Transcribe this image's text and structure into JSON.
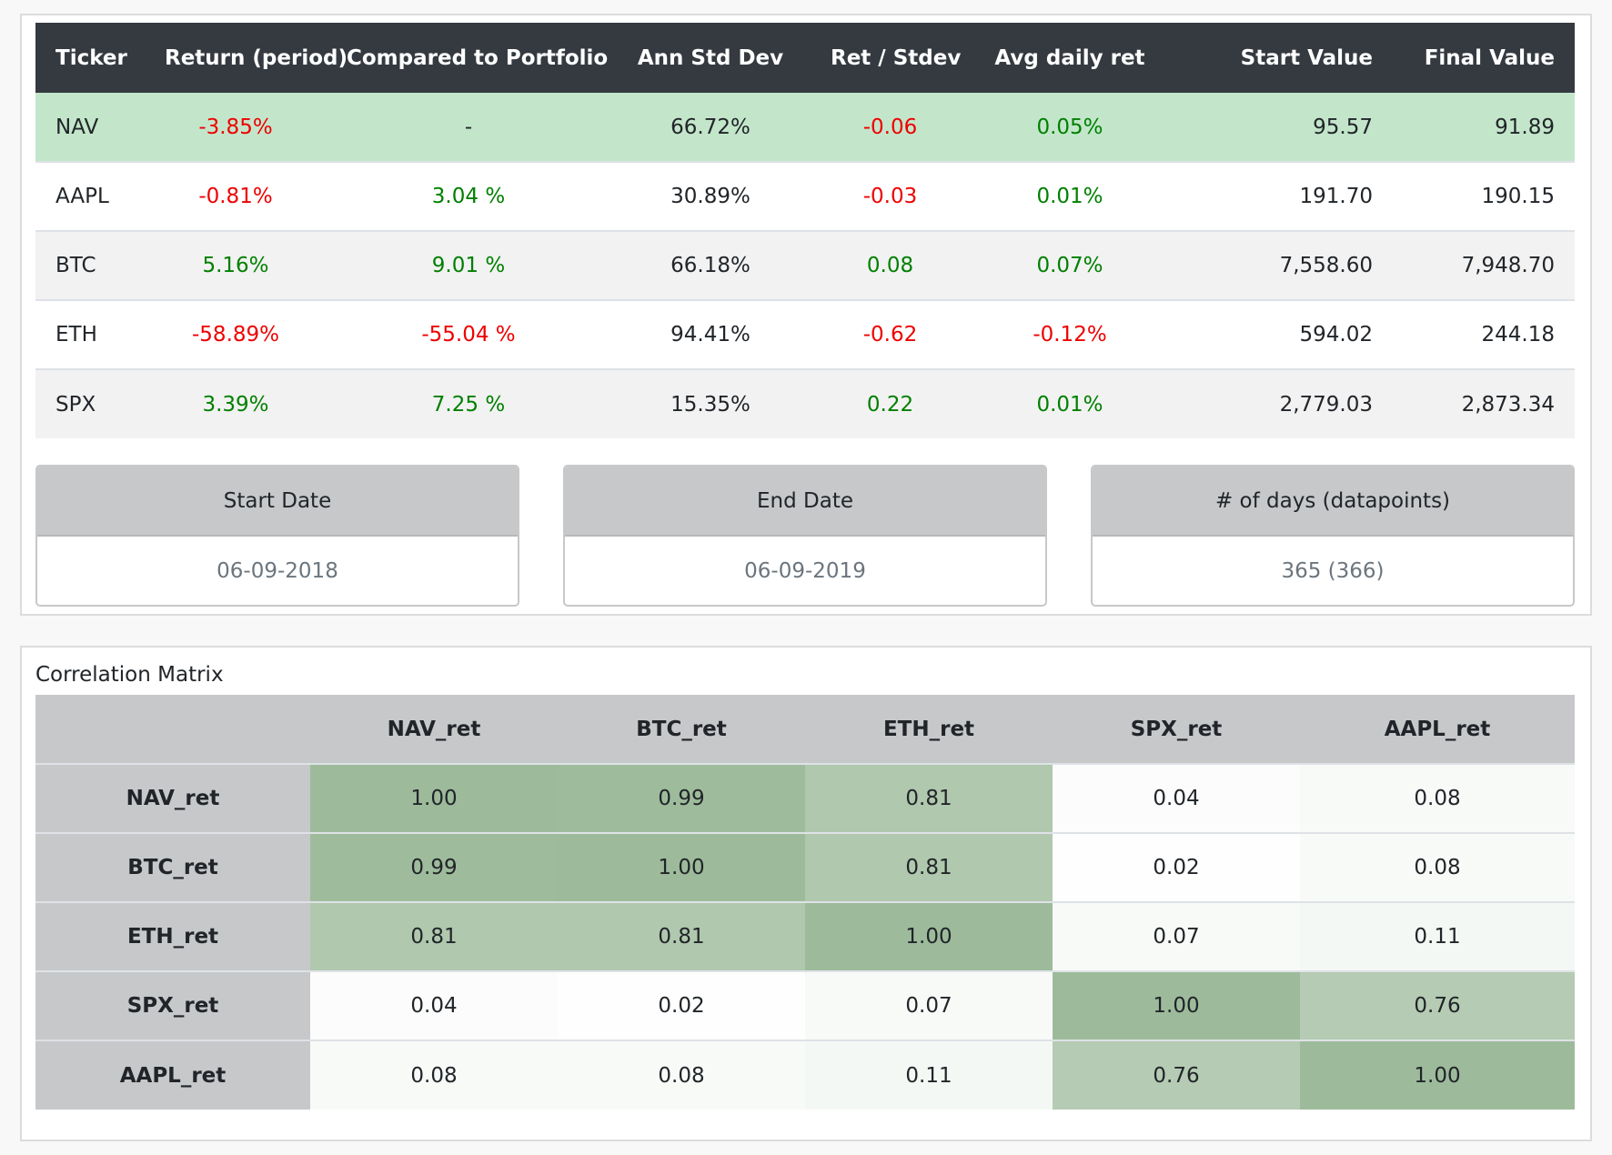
{
  "stats_table": {
    "headers": [
      "Ticker",
      "Return (period)",
      "Compared to Portfolio",
      "Ann Std Dev",
      "Ret / Stdev",
      "Avg daily ret",
      "Start Value",
      "Final Value"
    ],
    "rows": [
      {
        "ticker": "NAV",
        "ret": "-3.85%",
        "cmp": "-",
        "std": "66.72%",
        "rs": "-0.06",
        "avg": "0.05%",
        "start": "95.57",
        "final": "91.89"
      },
      {
        "ticker": "AAPL",
        "ret": "-0.81%",
        "cmp": "3.04 %",
        "std": "30.89%",
        "rs": "-0.03",
        "avg": "0.01%",
        "start": "191.70",
        "final": "190.15"
      },
      {
        "ticker": "BTC",
        "ret": "5.16%",
        "cmp": "9.01 %",
        "std": "66.18%",
        "rs": "0.08",
        "avg": "0.07%",
        "start": "7,558.60",
        "final": "7,948.70"
      },
      {
        "ticker": "ETH",
        "ret": "-58.89%",
        "cmp": "-55.04 %",
        "std": "94.41%",
        "rs": "-0.62",
        "avg": "-0.12%",
        "start": "594.02",
        "final": "244.18"
      },
      {
        "ticker": "SPX",
        "ret": "3.39%",
        "cmp": "7.25 %",
        "std": "15.35%",
        "rs": "0.22",
        "avg": "0.01%",
        "start": "2,779.03",
        "final": "2,873.34"
      }
    ]
  },
  "info_boxes": [
    {
      "header": "Start Date",
      "value": "06-09-2018"
    },
    {
      "header": "End Date",
      "value": "06-09-2019"
    },
    {
      "header": "# of days (datapoints)",
      "value": "365 (366)"
    }
  ],
  "correlation": {
    "title": "Correlation Matrix",
    "columns": [
      "NAV_ret",
      "BTC_ret",
      "ETH_ret",
      "SPX_ret",
      "AAPL_ret"
    ],
    "rows": [
      {
        "label": "NAV_ret",
        "values": [
          "1.00",
          "0.99",
          "0.81",
          "0.04",
          "0.08"
        ]
      },
      {
        "label": "BTC_ret",
        "values": [
          "0.99",
          "1.00",
          "0.81",
          "0.02",
          "0.08"
        ]
      },
      {
        "label": "ETH_ret",
        "values": [
          "0.81",
          "0.81",
          "1.00",
          "0.07",
          "0.11"
        ]
      },
      {
        "label": "SPX_ret",
        "values": [
          "0.04",
          "0.02",
          "0.07",
          "1.00",
          "0.76"
        ]
      },
      {
        "label": "AAPL_ret",
        "values": [
          "0.08",
          "0.08",
          "0.11",
          "0.76",
          "1.00"
        ]
      }
    ]
  },
  "colors": {
    "header_dark": "#343a40",
    "highlight_row": "#c3e6cb",
    "positive": "#008000",
    "negative": "#ee0000",
    "muted": "#6c757d",
    "gray_header": "#c6c8ca",
    "heat_high": "#9dbb9b",
    "heat_low": "#ffffff"
  }
}
